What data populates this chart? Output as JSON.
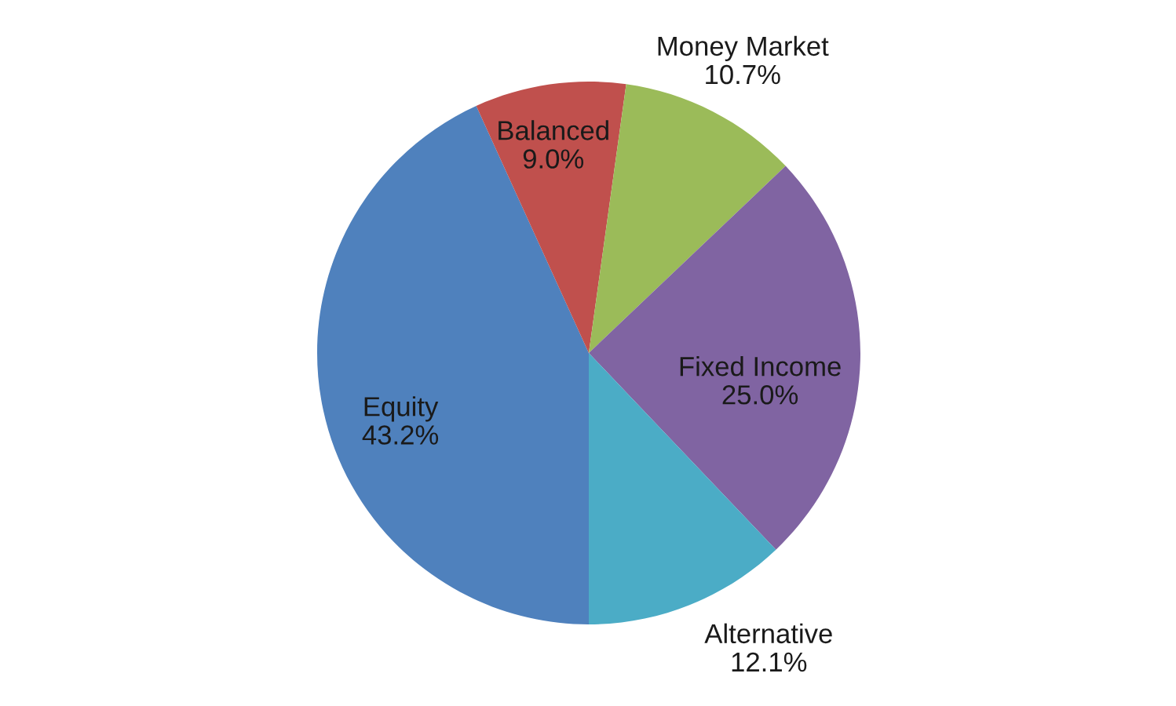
{
  "chart_data": {
    "type": "pie",
    "categories": [
      "Equity",
      "Balanced",
      "Money Market",
      "Fixed Income",
      "Alternative"
    ],
    "values": [
      43.2,
      9.0,
      10.7,
      25.0,
      12.1
    ],
    "value_labels": [
      "43.2%",
      "9.0%",
      "10.7%",
      "25.0%",
      "12.1%"
    ],
    "colors": [
      "#4f81bd",
      "#c0504d",
      "#9bbb59",
      "#8064a2",
      "#4bacc6"
    ],
    "legend": false
  }
}
